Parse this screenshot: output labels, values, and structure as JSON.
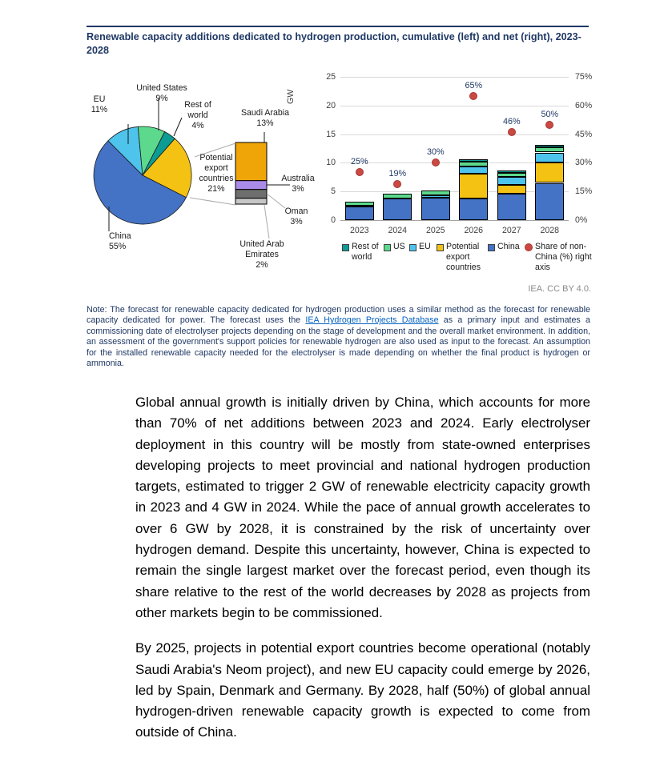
{
  "figure": {
    "title": "Renewable capacity additions dedicated to hydrogen production, cumulative (left) and net (right), 2023-2028",
    "credit": "IEA. CC BY 4.0.",
    "gw_label": "GW",
    "legend": [
      {
        "shape": "square",
        "color": "#0D9C94",
        "label": "Rest of world"
      },
      {
        "shape": "square",
        "color": "#5CD98D",
        "label": "US"
      },
      {
        "shape": "square",
        "color": "#4EC3EB",
        "label": "EU"
      },
      {
        "shape": "square",
        "color": "#F3C212",
        "label": "Potential export countries"
      },
      {
        "shape": "square",
        "color": "#4472C4",
        "label": "China"
      },
      {
        "shape": "circle",
        "color": "#CC4842",
        "label": "Share of non-China (%) right axis"
      }
    ],
    "note": {
      "prefix": "Note: The forecast for renewable capacity dedicated for hydrogen production uses a similar method as the forecast for renewable capacity dedicated for power. The forecast uses the ",
      "link": "IEA Hydrogen Projects Database",
      "suffix": " as a primary input and estimates a commissioning date of electrolyser projects depending on the stage of development and the overall market environment. In addition, an assessment of the government's support policies for renewable hydrogen are also used as input to the forecast. An assumption for the installed renewable capacity needed for the electrolyser is made depending on whether the final product is hydrogen or ammonia."
    }
  },
  "chart_data": [
    {
      "type": "pie",
      "title": "Cumulative renewable capacity additions dedicated to hydrogen production, 2023-2028 (share)",
      "start_angle": 315,
      "slices": [
        {
          "label": "EU",
          "pct": "11%",
          "value": 11,
          "color": "#4EC3EB"
        },
        {
          "label": "United States",
          "pct": "9%",
          "value": 9,
          "color": "#5CD98D"
        },
        {
          "label": "Rest of world",
          "pct": "4%",
          "value": 4,
          "color": "#0D9C94"
        },
        {
          "label": "Potential export countries",
          "pct": "21%",
          "value": 21,
          "color": "#F3C212"
        },
        {
          "label": "China",
          "pct": "55%",
          "value": 55,
          "color": "#4472C4"
        }
      ],
      "breakout": [
        {
          "label": "Saudi Arabia",
          "pct": "13%",
          "value": 13,
          "color": "#EFA408"
        },
        {
          "label": "Australia",
          "pct": "3%",
          "value": 3,
          "color": "#AB8BE8"
        },
        {
          "label": "Oman",
          "pct": "3%",
          "value": 3,
          "color": "#6E6E6E"
        },
        {
          "label": "United Arab Emirates",
          "pct": "2%",
          "value": 2,
          "color": "#C6C6C6"
        }
      ]
    },
    {
      "type": "bar",
      "stacked": true,
      "title": "Net renewable capacity additions dedicated to hydrogen production, 2023-2028",
      "categories": [
        "2023",
        "2024",
        "2025",
        "2026",
        "2027",
        "2028"
      ],
      "series": [
        {
          "name": "China",
          "color": "#4472C4",
          "values": [
            2.4,
            3.8,
            3.9,
            3.8,
            4.6,
            6.5
          ]
        },
        {
          "name": "Potential export countries",
          "color": "#F3C212",
          "values": [
            0.15,
            0,
            0,
            4.3,
            1.5,
            3.6
          ]
        },
        {
          "name": "EU",
          "color": "#4EC3EB",
          "values": [
            0,
            0,
            0.45,
            1.3,
            1.5,
            1.7
          ]
        },
        {
          "name": "US",
          "color": "#5CD98D",
          "values": [
            0.6,
            0.75,
            0.85,
            0.75,
            0.65,
            0.85
          ]
        },
        {
          "name": "Rest of world",
          "color": "#0D9C94",
          "values": [
            0,
            0,
            0,
            0.45,
            0.35,
            0.45
          ]
        }
      ],
      "dots": {
        "name": "Share of non-China (%) right axis",
        "color": "#CC4842",
        "values": [
          25,
          19,
          30,
          65,
          46,
          50
        ]
      },
      "ylabel": "GW",
      "ylim": [
        0,
        25
      ],
      "yticks": [
        0,
        5,
        10,
        15,
        20,
        25
      ],
      "y2lim": [
        0,
        75
      ],
      "y2ticks": [
        "0%",
        "15%",
        "30%",
        "45%",
        "60%",
        "75%"
      ],
      "grid": true,
      "legend_position": "bottom"
    }
  ],
  "body": {
    "p1": "Global annual growth is initially driven by China, which accounts for more than 70% of net additions between 2023 and 2024. Early electrolyser deployment in this country will be mostly from state-owned enterprises developing projects to meet provincial and national hydrogen production targets, estimated to trigger 2 GW of renewable electricity capacity growth in 2023 and 4 GW in 2024. While the pace of annual growth accelerates to over 6 GW by 2028, it is constrained by the risk of uncertainty over hydrogen demand. Despite this uncertainty, however, China is expected to remain the single largest market over the forecast period, even though its share relative to the rest of the world decreases by 2028 as projects from other markets begin to be commissioned.",
    "p2": "By 2025, projects in potential export countries become operational (notably Saudi Arabia's Neom project), and new EU capacity could emerge by 2026, led by Spain, Denmark and Germany. By 2028, half (50%) of global annual hydrogen-driven renewable capacity growth is expected to come from outside of China."
  }
}
